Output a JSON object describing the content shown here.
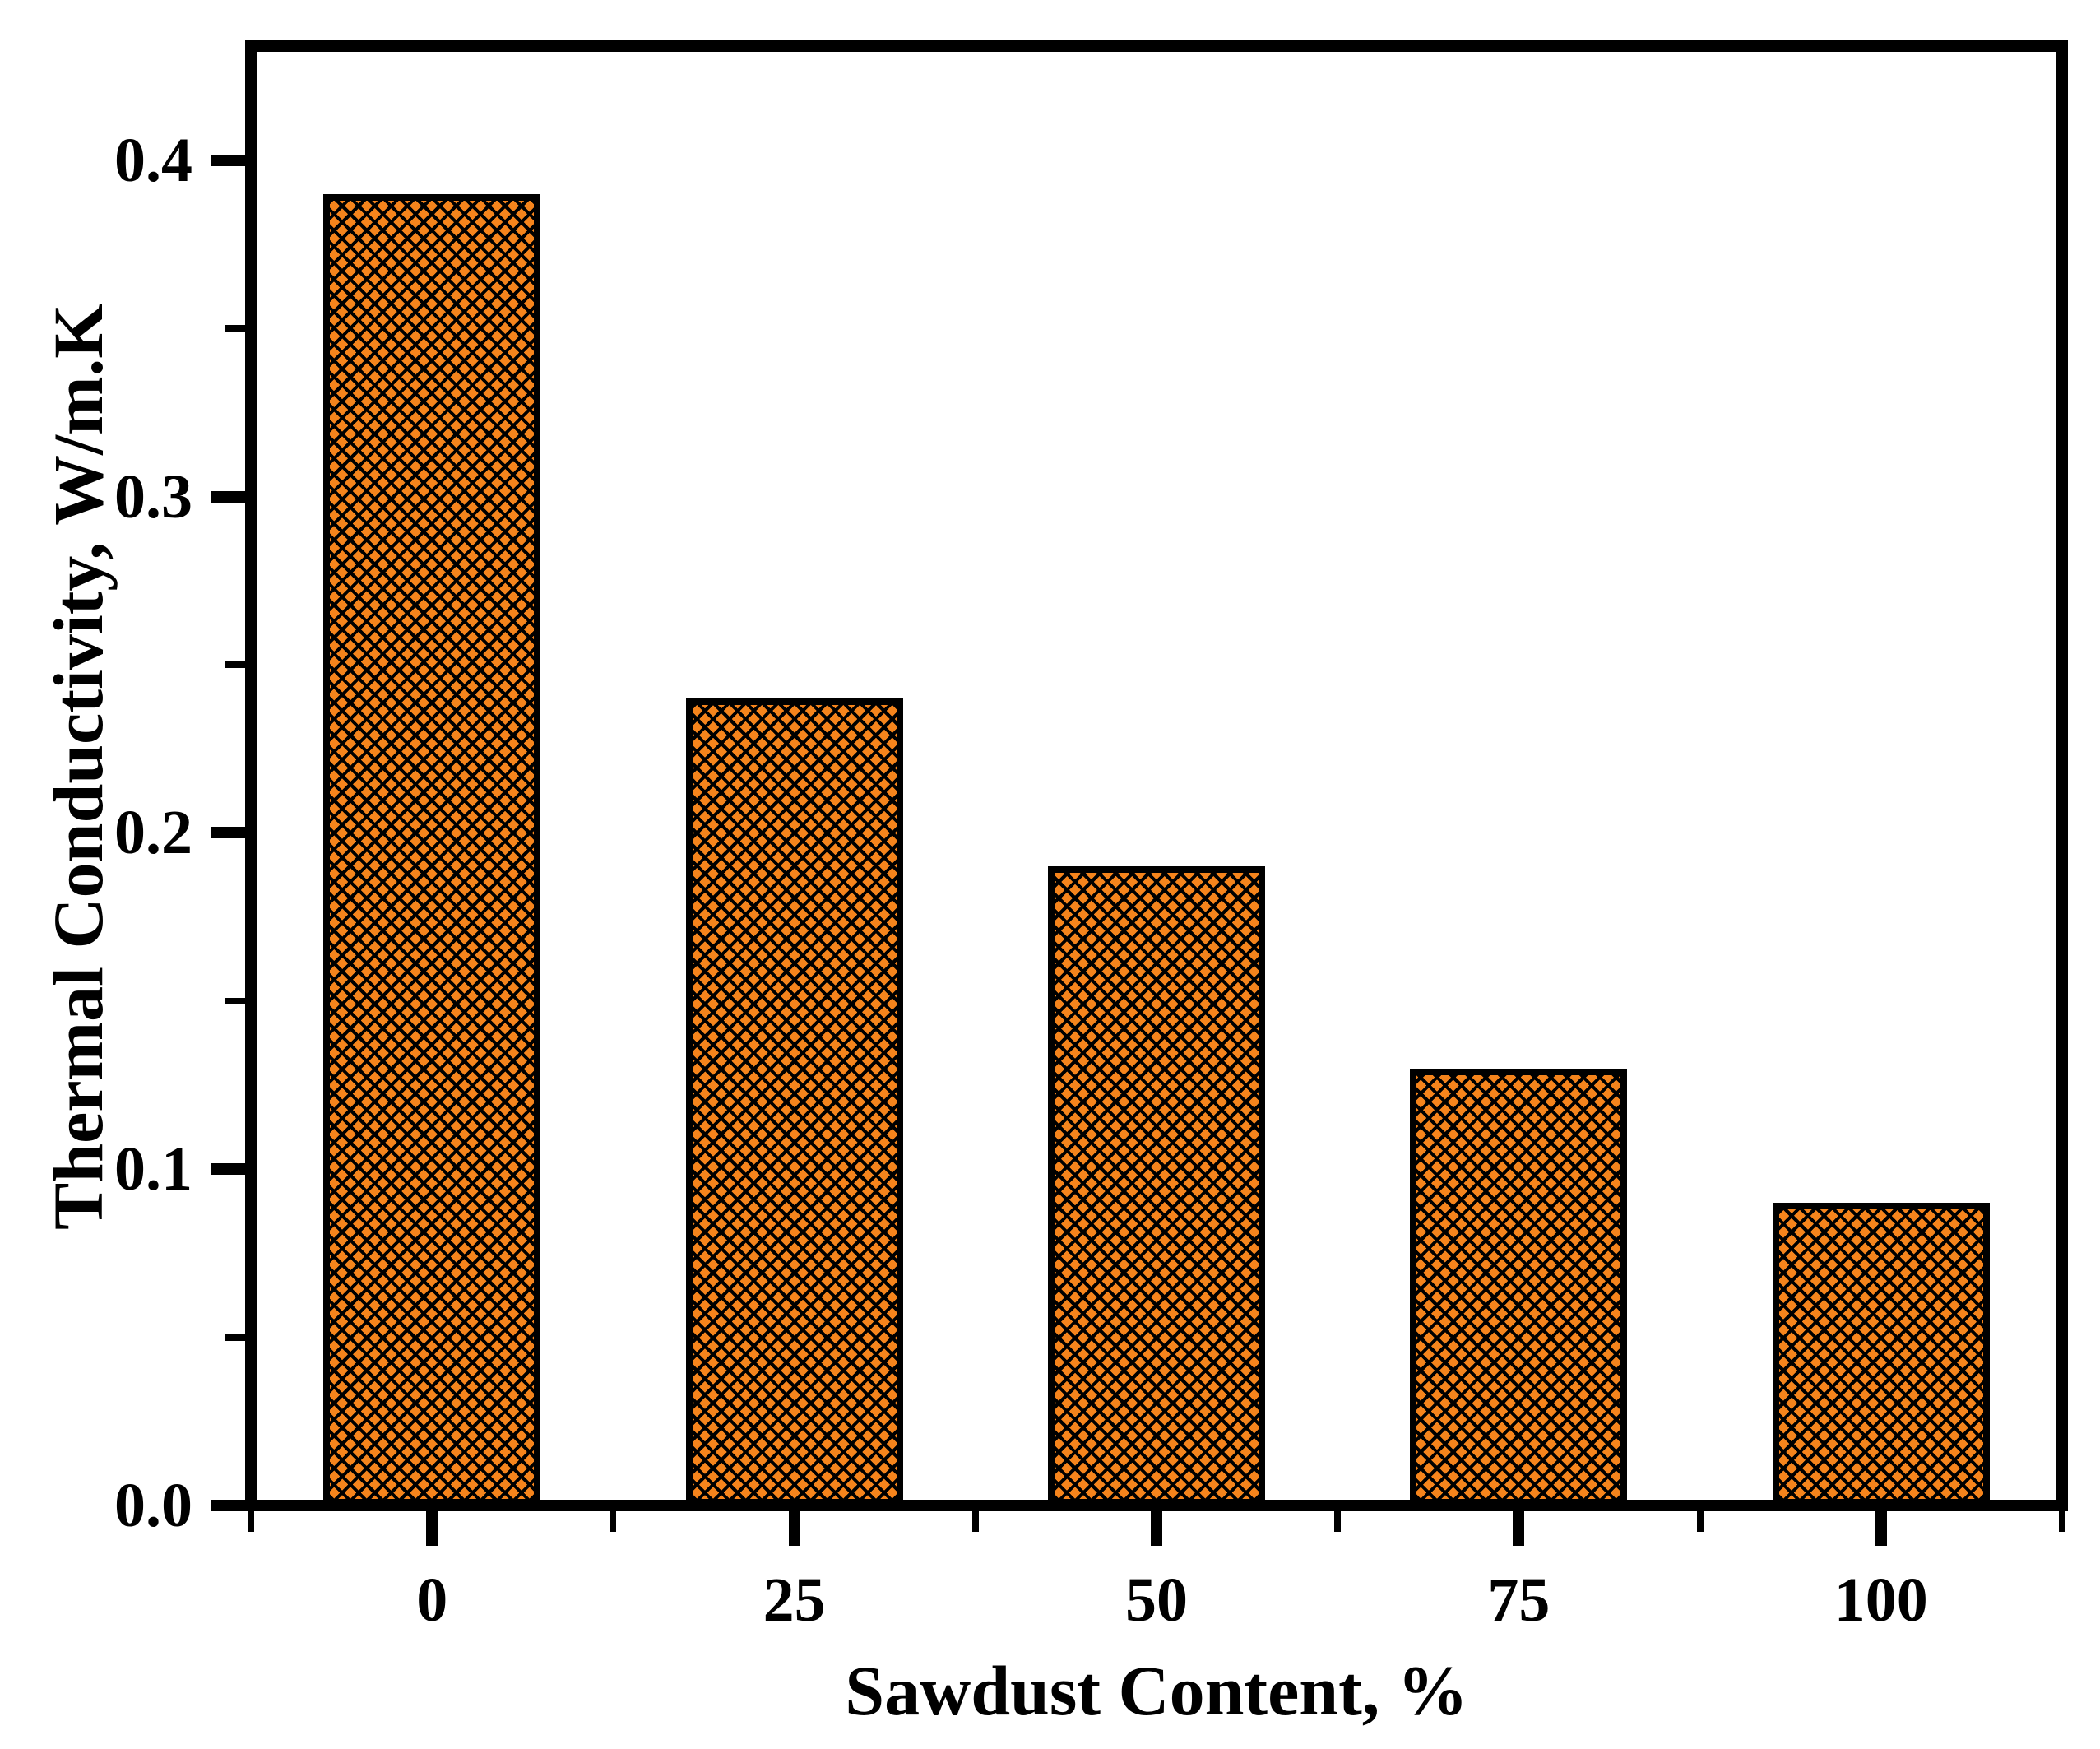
{
  "figure": {
    "background_color": "#ffffff"
  },
  "chart_data": {
    "type": "bar",
    "title": "",
    "categories": [
      "0",
      "25",
      "50",
      "75",
      "100"
    ],
    "values": [
      0.39,
      0.24,
      0.19,
      0.13,
      0.09
    ],
    "series_name": "Thermal Conductivity",
    "xlabel": "Sawdust Content, %",
    "ylabel": "Thermal Conductivity, W/m.K",
    "y_tick_labels": [
      "0.0",
      "0.1",
      "0.2",
      "0.3",
      "0.4"
    ],
    "y_major_ticks": [
      0.0,
      0.1,
      0.2,
      0.3,
      0.4
    ],
    "y_minor_ticks": [
      0.05,
      0.15,
      0.25,
      0.35
    ],
    "ylim": [
      0,
      0.434
    ],
    "grid": false,
    "legend": null,
    "bar_style": {
      "fill_color": "#F5841C",
      "hatch": "diagonal-crosshatch",
      "hatch_color": "#000000",
      "border_color": "#000000"
    },
    "axis_color": "#000000",
    "text_color": "#000000"
  }
}
